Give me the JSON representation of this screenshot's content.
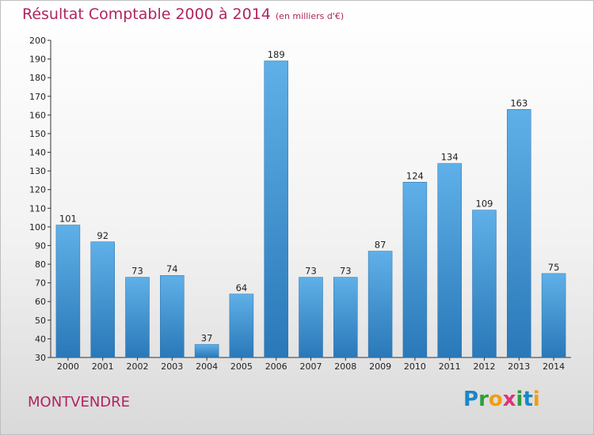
{
  "title": {
    "main": "Résultat Comptable 2000 à 2014",
    "sub": "(en milliers d'€)"
  },
  "commune": "MONTVENDRE",
  "logo": {
    "letters": [
      "P",
      "r",
      "o",
      "x",
      "i",
      "t",
      "i"
    ],
    "colors": [
      "#1a86c8",
      "#2e9e3a",
      "#f39c12",
      "#e0337a",
      "#2e9e3a",
      "#1a86c8",
      "#f39c12"
    ]
  },
  "colors": {
    "bar_top": "#5fb0e8",
    "bar_bottom": "#2a78b8",
    "title": "#b0245f"
  },
  "chart_data": {
    "type": "bar",
    "categories": [
      "2000",
      "2001",
      "2002",
      "2003",
      "2004",
      "2005",
      "2006",
      "2007",
      "2008",
      "2009",
      "2010",
      "2011",
      "2012",
      "2013",
      "2014"
    ],
    "values": [
      101,
      92,
      73,
      74,
      37,
      64,
      189,
      73,
      73,
      87,
      124,
      134,
      109,
      163,
      75
    ],
    "ylim": [
      30,
      200
    ],
    "yticks": [
      30,
      40,
      50,
      60,
      70,
      80,
      90,
      100,
      110,
      120,
      130,
      140,
      150,
      160,
      170,
      180,
      190,
      200
    ],
    "grid": false
  }
}
